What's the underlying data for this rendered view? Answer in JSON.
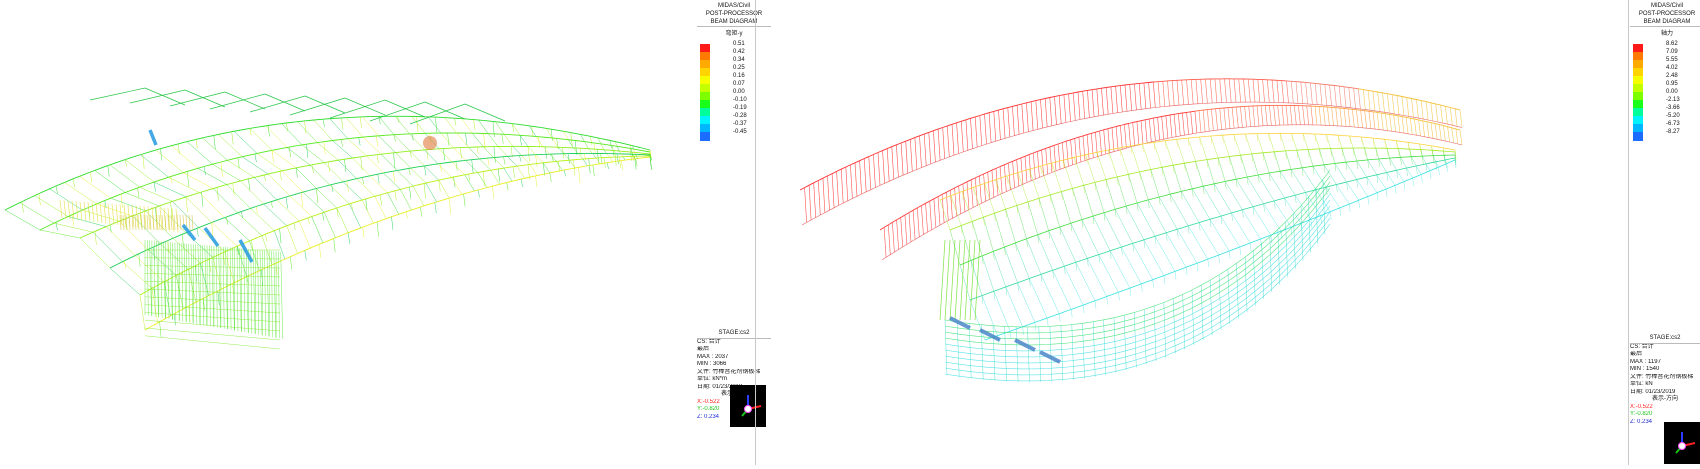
{
  "left": {
    "legend": {
      "program": "MIDAS/Civil",
      "title": "POST-PROCESSOR",
      "diagram": "BEAM DIAGRAM",
      "component": "弯矩-y",
      "values": [
        "0.51",
        "0.42",
        "0.34",
        "0.25",
        "0.16",
        "0.07",
        "0.00",
        "-0.10",
        "-0.19",
        "-0.28",
        "-0.37",
        "-0.45"
      ],
      "colors": [
        "#ff1a1a",
        "#ff7a00",
        "#ffaa00",
        "#ffd400",
        "#f6ff00",
        "#c4ff00",
        "#7dff00",
        "#1aff1a",
        "#00ff9a",
        "#00f2ff",
        "#00b6ff",
        "#1c6cff"
      ]
    },
    "info": {
      "stage": "STAGE:cs2",
      "cs": "CS: 合计",
      "max_line": "MAX : 2037",
      "min_line": "MIN : 3066",
      "extra_line": "最后",
      "file_line": "文件: 竹棒音花剂钢板梯",
      "unit_line": "单位: kN*m",
      "date_line": "日期: 01/23/2019",
      "dir_label": "表示-方向",
      "x": "X:-0.522",
      "y": "Y:-0.820",
      "z": "Z: 0.234"
    }
  },
  "right": {
    "legend": {
      "program": "MIDAS/Civil",
      "title": "POST-PROCESSOR",
      "diagram": "BEAM DIAGRAM",
      "component": "轴力",
      "values": [
        "8.62",
        "7.09",
        "5.55",
        "4.02",
        "2.48",
        "0.95",
        "0.00",
        "-2.13",
        "-3.66",
        "-5.20",
        "-6.73",
        "-8.27"
      ],
      "colors": [
        "#ff1a1a",
        "#ff7a00",
        "#ffaa00",
        "#ffd400",
        "#f6ff00",
        "#c4ff00",
        "#7dff00",
        "#1aff1a",
        "#00ff9a",
        "#00f2ff",
        "#00b6ff",
        "#1c6cff"
      ]
    },
    "info": {
      "stage": "STAGE:cs2",
      "cs": "CS: 合计",
      "max_line": "MAX : 1197",
      "min_line": "MIN : 1540",
      "extra_line": "最后",
      "file_line": "文件: 竹棒音花剂钢板梯",
      "unit_line": "单位: kN",
      "date_line": "日期: 01/23/2019",
      "dir_label": "表示-方向",
      "x": "X:-0.522",
      "y": "Y:-0.820",
      "z": "Z: 0.234"
    }
  }
}
